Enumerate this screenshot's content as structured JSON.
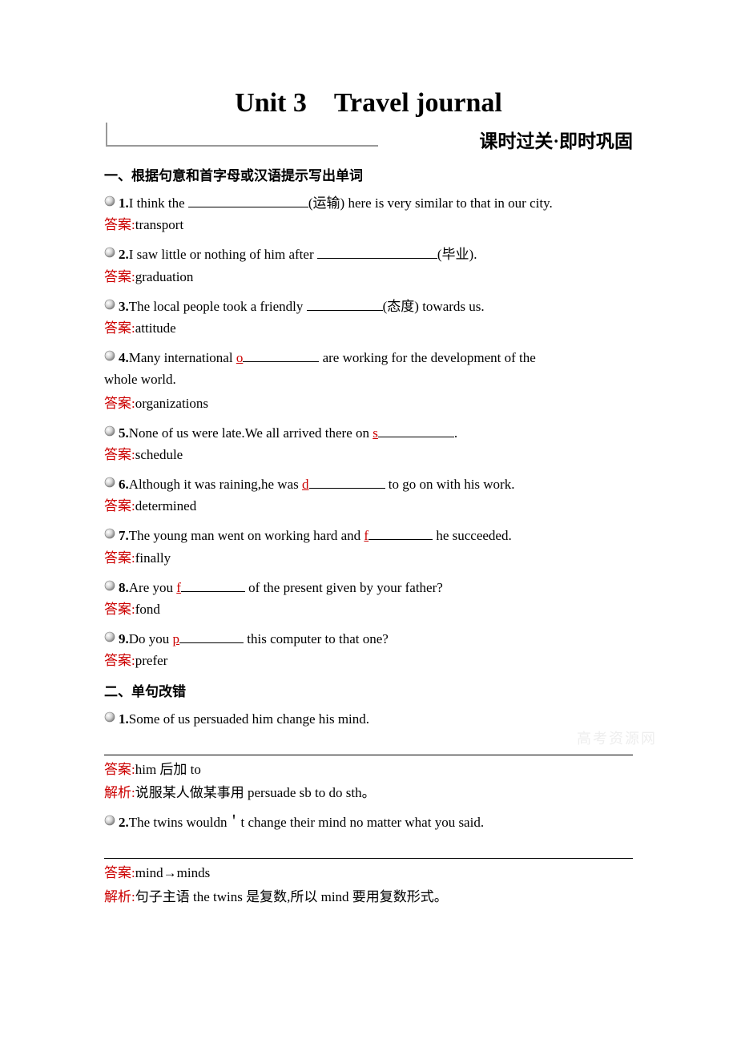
{
  "title": "Unit 3　Travel journal",
  "subtitle": "课时过关·即时巩固",
  "section1": {
    "heading": "一、根据句意和首字母或汉语提示写出单词",
    "items": [
      {
        "num": "1.",
        "pre": "I think the ",
        "blank": "long",
        "post": "(运输) here is very similar to that in our city.",
        "answer": "transport"
      },
      {
        "num": "2.",
        "pre": "I saw little or nothing of him after ",
        "blank": "long",
        "post": "(毕业).",
        "answer": "graduation"
      },
      {
        "num": "3.",
        "pre": "The local people took a friendly ",
        "blank": "med",
        "post": "(态度) towards us.",
        "answer": "attitude"
      },
      {
        "num": "4.",
        "pre": "Many international ",
        "hint": "o",
        "blank": "med",
        "post": " are working for the development of the",
        "cont": "whole world.",
        "answer": "organizations"
      },
      {
        "num": "5.",
        "pre": "None of us were late.We all arrived there on ",
        "hint": "s",
        "blank": "med",
        "post": ".",
        "answer": "schedule"
      },
      {
        "num": "6.",
        "pre": "Although it was raining,he was ",
        "hint": "d",
        "blank": "med",
        "post": " to go on with his work.",
        "answer": "determined"
      },
      {
        "num": "7.",
        "pre": "The young man went on working hard and ",
        "hint": "f",
        "blank": "short",
        "post": " he succeeded.",
        "answer": "finally"
      },
      {
        "num": "8.",
        "pre": "Are you ",
        "hint": "f",
        "blank": "short",
        "post": " of the present given by your father?",
        "answer": "fond"
      },
      {
        "num": "9.",
        "pre": "Do you ",
        "hint": "p",
        "blank": "short",
        "post": " this computer to that one?",
        "answer": "prefer"
      }
    ]
  },
  "section2": {
    "heading": "二、单句改错",
    "items": [
      {
        "num": "1.",
        "text": "Some of us persuaded him change his mind.",
        "answer": "him 后加 to",
        "explanation": "说服某人做某事用 persuade sb to do sth。"
      },
      {
        "num": "2.",
        "text": "The twins wouldn＇t change their mind no matter what you said.",
        "answer": "mind→minds",
        "explanation": "句子主语 the twins 是复数,所以 mind 要用复数形式。"
      }
    ]
  },
  "labels": {
    "answer": "答案:",
    "explanation": "解析:"
  },
  "watermark": "高考资源网",
  "colors": {
    "red": "#cc0000",
    "text": "#000000",
    "bracket": "#999999"
  }
}
